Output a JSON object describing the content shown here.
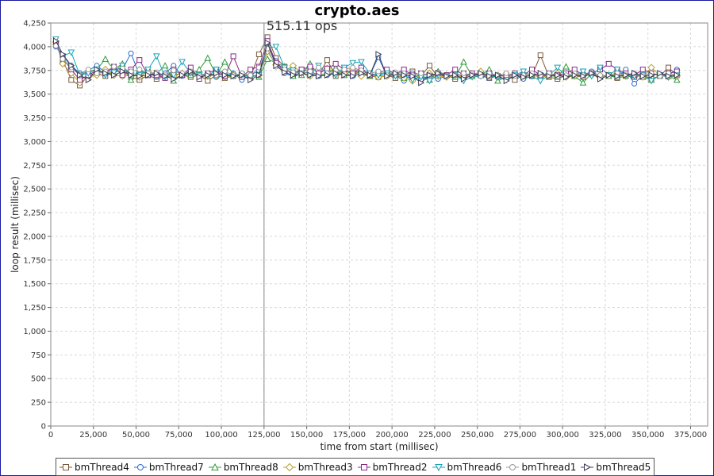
{
  "chart_data": {
    "type": "line",
    "title": "crypto.aes",
    "annotation": "515.11 ops",
    "annotation_x": 125000,
    "xlabel": "time from start (millisec)",
    "ylabel": "loop result (millisec)",
    "xlim": [
      0,
      385000
    ],
    "ylim": [
      0,
      4250
    ],
    "x_ticks": [
      0,
      25000,
      50000,
      75000,
      100000,
      125000,
      150000,
      175000,
      200000,
      225000,
      250000,
      275000,
      300000,
      325000,
      350000,
      375000
    ],
    "x_tick_labels": [
      "0",
      "25,000",
      "50,000",
      "75,000",
      "100,000",
      "125,000",
      "150,000",
      "175,000",
      "200,000",
      "225,000",
      "250,000",
      "275,000",
      "300,000",
      "325,000",
      "350,000",
      "375,000"
    ],
    "y_ticks": [
      0,
      250,
      500,
      750,
      1000,
      1250,
      1500,
      1750,
      2000,
      2250,
      2500,
      2750,
      3000,
      3250,
      3500,
      3750,
      4000,
      4250
    ],
    "y_tick_labels": [
      "0",
      "250",
      "500",
      "750",
      "1,000",
      "1,250",
      "1,500",
      "1,750",
      "2,000",
      "2,250",
      "2,500",
      "2,750",
      "3,000",
      "3,250",
      "3,500",
      "3,750",
      "4,000",
      "4,250"
    ],
    "grid": true,
    "legend_position": "bottom",
    "x": [
      3000,
      7000,
      12000,
      17000,
      22000,
      27000,
      32000,
      37000,
      42000,
      47000,
      52000,
      57000,
      62000,
      67000,
      72000,
      77000,
      82000,
      87000,
      92000,
      97000,
      102000,
      107000,
      112000,
      117000,
      122000,
      127000,
      132000,
      137000,
      142000,
      147000,
      152000,
      157000,
      162000,
      167000,
      172000,
      177000,
      182000,
      187000,
      192000,
      197000,
      202000,
      207000,
      212000,
      217000,
      222000,
      227000,
      232000,
      237000,
      242000,
      247000,
      252000,
      257000,
      262000,
      267000,
      272000,
      277000,
      282000,
      287000,
      292000,
      297000,
      302000,
      307000,
      312000,
      317000,
      322000,
      327000,
      332000,
      337000,
      342000,
      347000,
      352000,
      357000,
      362000,
      367000
    ],
    "series": [
      {
        "name": "bmThread4",
        "marker": "square",
        "color": "#7a5a3a",
        "values": [
          4020,
          3860,
          3650,
          3590,
          3700,
          3720,
          3690,
          3760,
          3720,
          3680,
          3650,
          3700,
          3660,
          3690,
          3720,
          3700,
          3680,
          3700,
          3640,
          3700,
          3670,
          3690,
          3710,
          3680,
          3920,
          4100,
          3880,
          3790,
          3700,
          3760,
          3740,
          3700,
          3860,
          3690,
          3720,
          3700,
          3760,
          3690,
          3680,
          3700,
          3670,
          3700,
          3740,
          3690,
          3800,
          3680,
          3700,
          3660,
          3720,
          3690,
          3700,
          3670,
          3690,
          3700,
          3650,
          3700,
          3690,
          3910,
          3680,
          3660,
          3700,
          3690,
          3680,
          3720,
          3680,
          3700,
          3670,
          3690,
          3680,
          3700,
          3660,
          3690,
          3780,
          3700
        ]
      },
      {
        "name": "bmThread7",
        "marker": "circle",
        "color": "#2a6bd1",
        "values": [
          4000,
          3900,
          3800,
          3720,
          3750,
          3800,
          3730,
          3770,
          3760,
          3930,
          3700,
          3750,
          3680,
          3720,
          3800,
          3690,
          3740,
          3700,
          3720,
          3680,
          3690,
          3720,
          3650,
          3700,
          3750,
          4010,
          3850,
          3720,
          3690,
          3730,
          3720,
          3690,
          3700,
          3740,
          3700,
          3690,
          3760,
          3700,
          3890,
          3690,
          3700,
          3640,
          3720,
          3650,
          3700,
          3660,
          3690,
          3700,
          3680,
          3720,
          3690,
          3670,
          3700,
          3690,
          3700,
          3660,
          3690,
          3700,
          3690,
          3700,
          3680,
          3690,
          3700,
          3740,
          3690,
          3700,
          3680,
          3760,
          3610,
          3700,
          3720,
          3690,
          3700,
          3760
        ]
      },
      {
        "name": "bmThread8",
        "marker": "triangle-up",
        "color": "#2e9a3a",
        "values": [
          4050,
          3850,
          3800,
          3700,
          3740,
          3760,
          3870,
          3760,
          3820,
          3650,
          3760,
          3700,
          3720,
          3800,
          3640,
          3700,
          3700,
          3760,
          3880,
          3700,
          3840,
          3710,
          3690,
          3710,
          3680,
          3870,
          3830,
          3790,
          3690,
          3700,
          3820,
          3700,
          3720,
          3780,
          3700,
          3750,
          3720,
          3690,
          3700,
          3740,
          3700,
          3670,
          3680,
          3700,
          3650,
          3740,
          3700,
          3680,
          3840,
          3690,
          3700,
          3760,
          3640,
          3680,
          3700,
          3690,
          3700,
          3690,
          3700,
          3680,
          3790,
          3690,
          3620,
          3720,
          3700,
          3690,
          3680,
          3710,
          3700,
          3680,
          3650,
          3700,
          3690,
          3650
        ]
      },
      {
        "name": "bmThread3",
        "marker": "diamond",
        "color": "#b5a030",
        "values": [
          4050,
          3820,
          3720,
          3620,
          3680,
          3700,
          3760,
          3700,
          3690,
          3720,
          3680,
          3740,
          3700,
          3680,
          3690,
          3720,
          3740,
          3700,
          3690,
          3700,
          3680,
          3700,
          3690,
          3690,
          3700,
          3950,
          3810,
          3740,
          3800,
          3720,
          3690,
          3710,
          3770,
          3730,
          3720,
          3760,
          3690,
          3700,
          3680,
          3690,
          3700,
          3670,
          3640,
          3700,
          3720,
          3690,
          3680,
          3700,
          3680,
          3700,
          3740,
          3690,
          3700,
          3680,
          3700,
          3690,
          3700,
          3680,
          3690,
          3720,
          3680,
          3690,
          3710,
          3700,
          3680,
          3700,
          3720,
          3690,
          3700,
          3680,
          3780,
          3700,
          3680,
          3690
        ]
      },
      {
        "name": "bmThread2",
        "marker": "square",
        "color": "#8a2a8a",
        "values": [
          4030,
          3880,
          3760,
          3650,
          3700,
          3750,
          3720,
          3790,
          3700,
          3760,
          3860,
          3700,
          3700,
          3670,
          3760,
          3700,
          3780,
          3660,
          3720,
          3760,
          3690,
          3900,
          3680,
          3760,
          3790,
          4060,
          3830,
          3760,
          3720,
          3760,
          3790,
          3720,
          3770,
          3820,
          3760,
          3720,
          3780,
          3700,
          3720,
          3760,
          3710,
          3760,
          3700,
          3720,
          3690,
          3720,
          3700,
          3760,
          3700,
          3720,
          3700,
          3720,
          3690,
          3700,
          3720,
          3700,
          3760,
          3700,
          3720,
          3700,
          3720,
          3760,
          3700,
          3720,
          3760,
          3820,
          3760,
          3720,
          3700,
          3760,
          3720,
          3700,
          3720,
          3740
        ]
      },
      {
        "name": "bmThread6",
        "marker": "triangle-down",
        "color": "#17a3b8",
        "values": [
          4080,
          3900,
          3940,
          3700,
          3720,
          3760,
          3700,
          3730,
          3800,
          3700,
          3700,
          3760,
          3900,
          3680,
          3700,
          3840,
          3720,
          3700,
          3690,
          3760,
          3720,
          3690,
          3700,
          3680,
          3700,
          3990,
          4000,
          3780,
          3750,
          3720,
          3700,
          3800,
          3720,
          3700,
          3780,
          3830,
          3840,
          3720,
          3700,
          3720,
          3690,
          3700,
          3650,
          3680,
          3640,
          3700,
          3690,
          3700,
          3640,
          3680,
          3690,
          3700,
          3680,
          3650,
          3700,
          3740,
          3690,
          3640,
          3700,
          3780,
          3690,
          3700,
          3740,
          3690,
          3780,
          3700,
          3760,
          3690,
          3690,
          3700,
          3640,
          3700,
          3680,
          3700
        ]
      },
      {
        "name": "bmThread1",
        "marker": "circle",
        "color": "#9a9a9a",
        "values": [
          4010,
          3870,
          3780,
          3700,
          3760,
          3720,
          3740,
          3790,
          3770,
          3740,
          3760,
          3720,
          3730,
          3700,
          3750,
          3720,
          3740,
          3690,
          3720,
          3700,
          3740,
          3700,
          3720,
          3700,
          3780,
          3980,
          3790,
          3760,
          3730,
          3720,
          3740,
          3780,
          3720,
          3750,
          3760,
          3780,
          3750,
          3720,
          3740,
          3700,
          3730,
          3720,
          3700,
          3720,
          3700,
          3720,
          3690,
          3700,
          3720,
          3700,
          3690,
          3720,
          3700,
          3720,
          3690,
          3700,
          3720,
          3700,
          3720,
          3690,
          3700,
          3720,
          3700,
          3720,
          3700,
          3690,
          3720,
          3700,
          3720,
          3700,
          3720,
          3690,
          3720,
          3700
        ]
      },
      {
        "name": "bmThread5",
        "marker": "triangle-right",
        "color": "#3a3a55",
        "values": [
          4060,
          3920,
          3800,
          3700,
          3650,
          3760,
          3720,
          3700,
          3740,
          3700,
          3690,
          3700,
          3720,
          3690,
          3660,
          3700,
          3740,
          3680,
          3700,
          3720,
          3700,
          3690,
          3700,
          3650,
          3700,
          4040,
          3800,
          3730,
          3700,
          3720,
          3700,
          3690,
          3700,
          3720,
          3700,
          3690,
          3720,
          3700,
          3920,
          3690,
          3720,
          3700,
          3690,
          3620,
          3700,
          3720,
          3690,
          3700,
          3660,
          3700,
          3720,
          3690,
          3700,
          3640,
          3700,
          3680,
          3700,
          3720,
          3690,
          3700,
          3680,
          3700,
          3690,
          3720,
          3660,
          3700,
          3690,
          3700,
          3720,
          3690,
          3700,
          3720,
          3690,
          3700
        ]
      }
    ]
  }
}
